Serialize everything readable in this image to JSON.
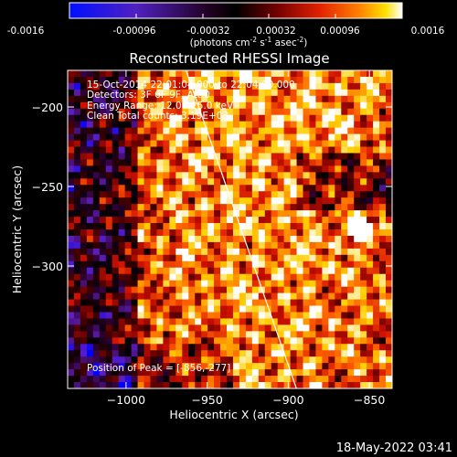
{
  "colorbar": {
    "ticks": [
      "-0.0016",
      "-0.00096",
      "-0.00032",
      "0.00032",
      "0.00096",
      "0.0016"
    ],
    "unit": "(photons cm",
    "unit_sup1": "-2",
    "unit_mid": " s",
    "unit_sup2": "-1",
    "unit_end": " asec",
    "unit_sup3": "-2",
    "unit_close": ")"
  },
  "plot": {
    "title": "Reconstructed RHESSI Image",
    "info": [
      "15-Oct-2014 22:01:04.000 to 22:04:00.000",
      "Detectors: 3F 6F 9F, Att 0",
      "Energy Range: 12.0 - 25.0 keV",
      "Clean     Total counts: 3.19E+03"
    ],
    "peak_text": "Position of Peak = [-856,-277]",
    "timestamp": "18-May-2022 03:41"
  },
  "chart_data": {
    "type": "heatmap",
    "title": "Reconstructed RHESSI Image",
    "xlabel": "Heliocentric X (arcsec)",
    "ylabel": "Heliocentric Y (arcsec)",
    "xlim": [
      -1036,
      -836
    ],
    "ylim": [
      -377,
      -177
    ],
    "x_ticks": [
      -1000,
      -950,
      -900,
      -850
    ],
    "y_ticks": [
      -200,
      -250,
      -300
    ],
    "x_tick_labels": [
      "−1000",
      "−950",
      "−900",
      "−850"
    ],
    "y_tick_labels": [
      "−200",
      "−250",
      "−300"
    ],
    "color_range": [
      -0.0016,
      0.0016
    ],
    "colormap": [
      "#0000ff",
      "#6020c0",
      "#300030",
      "#000000",
      "#600000",
      "#d01000",
      "#ff6000",
      "#ffd000",
      "#ffffff"
    ],
    "peak_position": [
      -856,
      -277
    ],
    "limb_line": [
      [
        -963,
        -177
      ],
      [
        -895,
        -377
      ]
    ]
  }
}
